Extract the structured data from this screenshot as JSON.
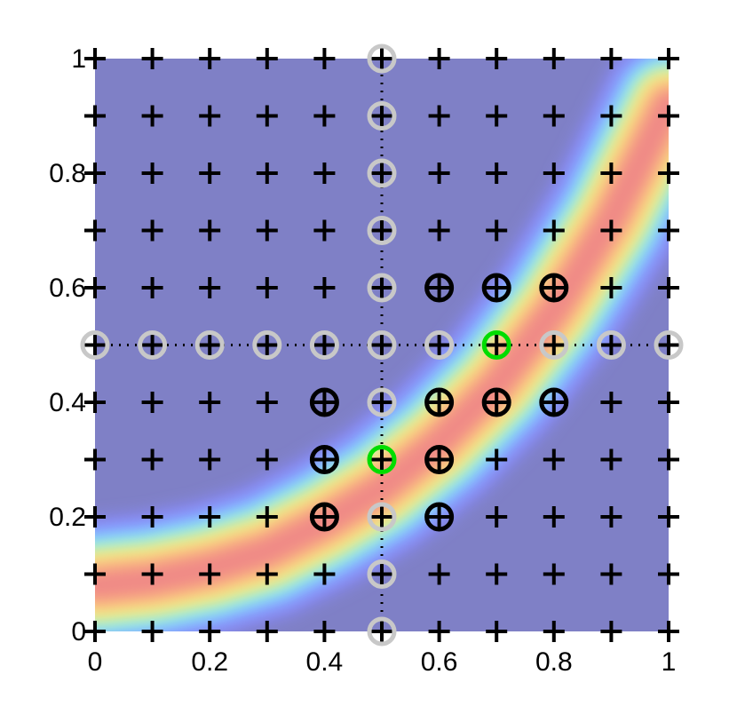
{
  "chart_data": {
    "type": "scatter",
    "xlim": [
      0,
      1
    ],
    "ylim": [
      0,
      1
    ],
    "xticks": [
      0,
      0.2,
      0.4,
      0.6,
      0.8,
      1
    ],
    "yticks": [
      0,
      0.2,
      0.4,
      0.6,
      0.8,
      1
    ],
    "background_color": "#7f80c6",
    "crosshair": {
      "x": 0.5,
      "y": 0.5,
      "color": "#000000"
    },
    "band": {
      "colors": [
        "#8a8cff",
        "#7fe4ff",
        "#e6f58a",
        "#ffd27f",
        "#f08a86"
      ],
      "x": [
        0,
        0.1,
        0.2,
        0.3,
        0.4,
        0.5,
        0.6,
        0.7,
        0.8,
        0.9,
        1
      ],
      "y": [
        0.08,
        0.09,
        0.11,
        0.14,
        0.19,
        0.25,
        0.33,
        0.43,
        0.56,
        0.72,
        0.92
      ]
    },
    "series": [
      {
        "marker": "plus",
        "color": "#000000",
        "x": [
          0,
          0.1,
          0.2,
          0.3,
          0.4,
          0.5,
          0.6,
          0.7,
          0.8,
          0.9,
          1,
          0,
          0.1,
          0.2,
          0.3,
          0.4,
          0.5,
          0.6,
          0.7,
          0.8,
          0.9,
          1,
          0,
          0.1,
          0.2,
          0.3,
          0.4,
          0.5,
          0.6,
          0.7,
          0.8,
          0.9,
          1,
          0,
          0.1,
          0.2,
          0.3,
          0.4,
          0.5,
          0.6,
          0.7,
          0.8,
          0.9,
          1,
          0,
          0.1,
          0.2,
          0.3,
          0.4,
          0.5,
          0.6,
          0.7,
          0.8,
          0.9,
          1,
          0,
          0.1,
          0.2,
          0.3,
          0.4,
          0.5,
          0.6,
          0.7,
          0.8,
          0.9,
          1,
          0,
          0.1,
          0.2,
          0.3,
          0.4,
          0.5,
          0.6,
          0.7,
          0.8,
          0.9,
          1,
          0,
          0.1,
          0.2,
          0.3,
          0.4,
          0.5,
          0.6,
          0.7,
          0.8,
          0.9,
          1,
          0,
          0.1,
          0.2,
          0.3,
          0.4,
          0.5,
          0.6,
          0.7,
          0.8,
          0.9,
          1,
          0,
          0.1,
          0.2,
          0.3,
          0.4,
          0.5,
          0.6,
          0.7,
          0.8,
          0.9,
          1,
          0,
          0.1,
          0.2,
          0.3,
          0.4,
          0.5,
          0.6,
          0.7,
          0.8,
          0.9,
          1
        ],
        "y": [
          0,
          0,
          0,
          0,
          0,
          0,
          0,
          0,
          0,
          0,
          0,
          0.1,
          0.1,
          0.1,
          0.1,
          0.1,
          0.1,
          0.1,
          0.1,
          0.1,
          0.1,
          0.1,
          0.2,
          0.2,
          0.2,
          0.2,
          0.2,
          0.2,
          0.2,
          0.2,
          0.2,
          0.2,
          0.2,
          0.3,
          0.3,
          0.3,
          0.3,
          0.3,
          0.3,
          0.3,
          0.3,
          0.3,
          0.3,
          0.3,
          0.4,
          0.4,
          0.4,
          0.4,
          0.4,
          0.4,
          0.4,
          0.4,
          0.4,
          0.4,
          0.4,
          0.5,
          0.5,
          0.5,
          0.5,
          0.5,
          0.5,
          0.5,
          0.5,
          0.5,
          0.5,
          0.5,
          0.6,
          0.6,
          0.6,
          0.6,
          0.6,
          0.6,
          0.6,
          0.6,
          0.6,
          0.6,
          0.6,
          0.7,
          0.7,
          0.7,
          0.7,
          0.7,
          0.7,
          0.7,
          0.7,
          0.7,
          0.7,
          0.7,
          0.8,
          0.8,
          0.8,
          0.8,
          0.8,
          0.8,
          0.8,
          0.8,
          0.8,
          0.8,
          0.8,
          0.9,
          0.9,
          0.9,
          0.9,
          0.9,
          0.9,
          0.9,
          0.9,
          0.9,
          0.9,
          0.9,
          1,
          1,
          1,
          1,
          1,
          1,
          1,
          1,
          1,
          1,
          1
        ]
      },
      {
        "marker": "circle",
        "color": "#c8c8c8",
        "x": [
          0.5,
          0.5,
          0.5,
          0.5,
          0.5,
          0.5,
          0.5,
          0.5,
          0.5,
          0.5,
          0,
          0.1,
          0.2,
          0.3,
          0.4,
          0.6,
          0.8,
          0.9,
          1
        ],
        "y": [
          0,
          0.1,
          0.2,
          0.4,
          0.5,
          0.6,
          0.7,
          0.8,
          0.9,
          1,
          0.5,
          0.5,
          0.5,
          0.5,
          0.5,
          0.5,
          0.5,
          0.5,
          0.5
        ]
      },
      {
        "marker": "circle",
        "color": "#000000",
        "x": [
          0.6,
          0.7,
          0.8,
          0.4,
          0.6,
          0.7,
          0.8,
          0.4,
          0.6,
          0.4,
          0.6
        ],
        "y": [
          0.6,
          0.6,
          0.6,
          0.4,
          0.4,
          0.4,
          0.4,
          0.3,
          0.3,
          0.2,
          0.2
        ]
      },
      {
        "marker": "circle",
        "color": "#00dd00",
        "x": [
          0.7,
          0.5
        ],
        "y": [
          0.5,
          0.3
        ]
      }
    ]
  }
}
